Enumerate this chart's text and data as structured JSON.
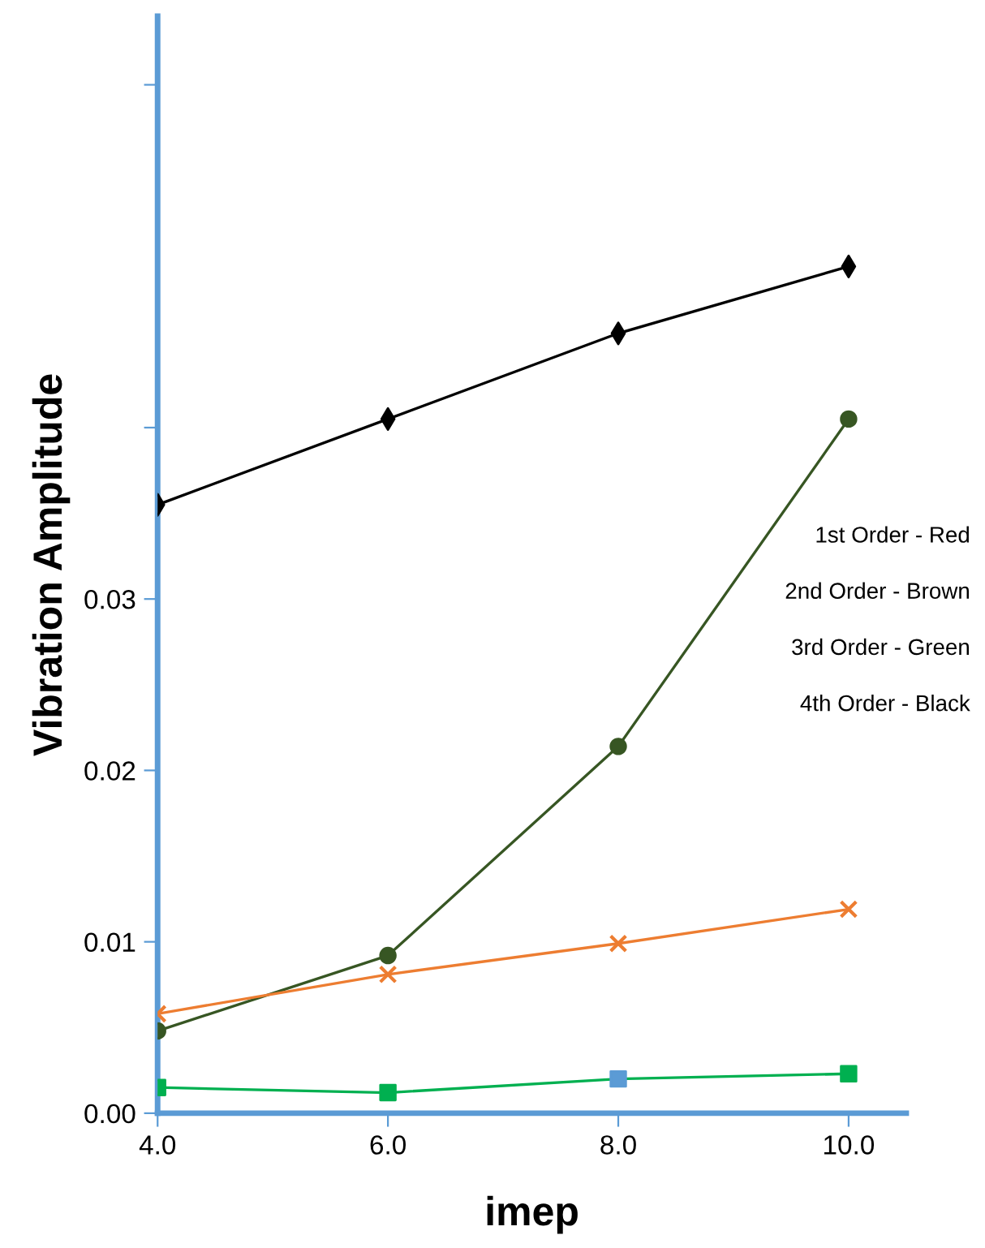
{
  "chart_data": {
    "type": "line",
    "xlabel": "imep",
    "ylabel": "Vibration Amplitude",
    "x": [
      4.0,
      6.0,
      8.0,
      10.0
    ],
    "series": [
      {
        "color": "#000000",
        "marker": "diamond",
        "values": [
          0.0355,
          0.0405,
          0.0455,
          0.0494
        ]
      },
      {
        "color": "#375623",
        "marker": "circle",
        "values": [
          0.0048,
          0.0092,
          0.0214,
          0.0405
        ]
      },
      {
        "color": "#ed7d31",
        "marker": "cross",
        "values": [
          0.0058,
          0.0081,
          0.0099,
          0.0119
        ]
      },
      {
        "color": "#00b050",
        "marker": "square",
        "colors": [
          "#00b050",
          "#00b050",
          "#5b9bd5",
          "#00b050"
        ],
        "values": [
          0.0015,
          0.0012,
          0.002,
          0.0023
        ]
      }
    ],
    "xlim": [
      4.0,
      10.5
    ],
    "ylim": [
      0,
      0.064
    ],
    "xticks": [
      {
        "value": 4,
        "label": "4.0"
      },
      {
        "value": 6,
        "label": "6.0"
      },
      {
        "value": 8,
        "label": "8.0"
      },
      {
        "value": 10,
        "label": "10.0"
      }
    ],
    "yticks": [
      {
        "value": 0,
        "label": "0.00"
      },
      {
        "value": 0.01,
        "label": "0.01"
      },
      {
        "value": 0.02,
        "label": "0.02"
      },
      {
        "value": 0.03,
        "label": "0.03"
      },
      {
        "value": 0.04,
        "label": null
      },
      {
        "value": 0.06,
        "label": null
      }
    ],
    "annotations": [
      "1st Order - Red",
      "2nd Order - Brown",
      "3rd Order - Green",
      "4th Order - Black"
    ],
    "grid": false,
    "legend": false
  }
}
